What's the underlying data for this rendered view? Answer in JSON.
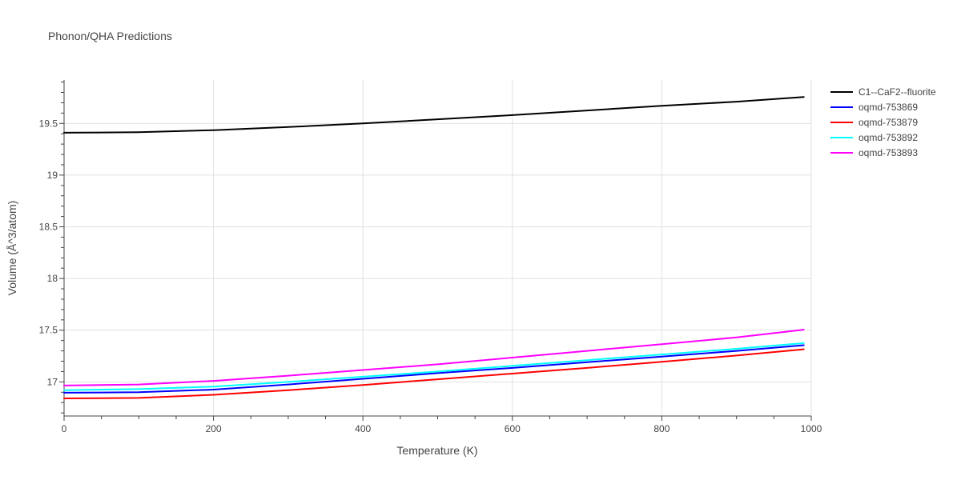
{
  "chart_data": {
    "type": "line",
    "title": "Phonon/QHA Predictions",
    "xlabel": "Temperature (K)",
    "ylabel": "Volume (Å^3/atom)",
    "xlim": [
      0,
      1000
    ],
    "ylim": [
      16.67,
      19.92
    ],
    "x_ticks": [
      0,
      200,
      400,
      600,
      800,
      1000
    ],
    "y_ticks": [
      17,
      17.5,
      18,
      18.5,
      19,
      19.5
    ],
    "x_tick_labels": [
      "0",
      "200",
      "400",
      "600",
      "800",
      "1000"
    ],
    "y_tick_labels": [
      "17",
      "17.5",
      "18",
      "18.5",
      "19",
      "19.5"
    ],
    "grid": true,
    "legend_position": "top-right",
    "x": [
      0,
      100,
      200,
      300,
      400,
      500,
      600,
      700,
      800,
      900,
      990
    ],
    "series": [
      {
        "name": "C1--CaF2--fluorite",
        "color": "#000000",
        "values": [
          19.41,
          19.415,
          19.435,
          19.465,
          19.5,
          19.54,
          19.58,
          19.625,
          19.67,
          19.71,
          19.755
        ]
      },
      {
        "name": "oqmd-753869",
        "color": "#0000ff",
        "values": [
          16.895,
          16.9,
          16.925,
          16.975,
          17.03,
          17.085,
          17.135,
          17.19,
          17.245,
          17.3,
          17.355
        ]
      },
      {
        "name": "oqmd-753879",
        "color": "#ff0000",
        "values": [
          16.84,
          16.845,
          16.875,
          16.92,
          16.97,
          17.025,
          17.08,
          17.135,
          17.195,
          17.255,
          17.315
        ]
      },
      {
        "name": "oqmd-753892",
        "color": "#00ffff",
        "values": [
          16.92,
          16.93,
          16.955,
          17.0,
          17.05,
          17.1,
          17.155,
          17.21,
          17.265,
          17.32,
          17.375
        ]
      },
      {
        "name": "oqmd-753893",
        "color": "#ff00ff",
        "values": [
          16.965,
          16.975,
          17.01,
          17.06,
          17.115,
          17.17,
          17.235,
          17.3,
          17.365,
          17.43,
          17.505
        ]
      }
    ]
  }
}
